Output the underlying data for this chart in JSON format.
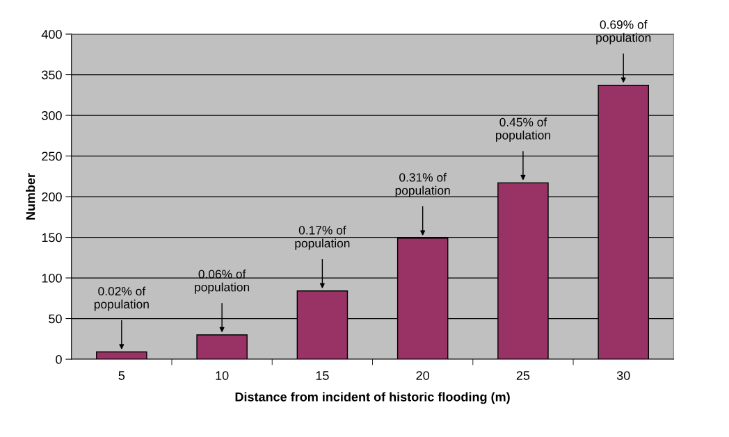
{
  "chart_data": {
    "type": "bar",
    "xlabel": "Distance from incident of historic flooding (m)",
    "ylabel": "Number",
    "categories": [
      "5",
      "10",
      "15",
      "20",
      "25",
      "30"
    ],
    "values": [
      9,
      30,
      84,
      149,
      217,
      337
    ],
    "color": "#993366",
    "ylim": [
      0,
      400
    ],
    "yticks": [
      0,
      50,
      100,
      150,
      200,
      250,
      300,
      350,
      400
    ],
    "grid": "y",
    "annotations": [
      {
        "text": "0.02% of\npopulation",
        "x": "5",
        "y": 9
      },
      {
        "text": "0.06% of\npopulation",
        "x": "10",
        "y": 30
      },
      {
        "text": "0.17% of\npopulation",
        "x": "15",
        "y": 84
      },
      {
        "text": "0.31% of\npopulation",
        "x": "20",
        "y": 149
      },
      {
        "text": "0.45% of\npopulation",
        "x": "25",
        "y": 217
      },
      {
        "text": "0.69% of\npopulation",
        "x": "30",
        "y": 337
      }
    ]
  }
}
